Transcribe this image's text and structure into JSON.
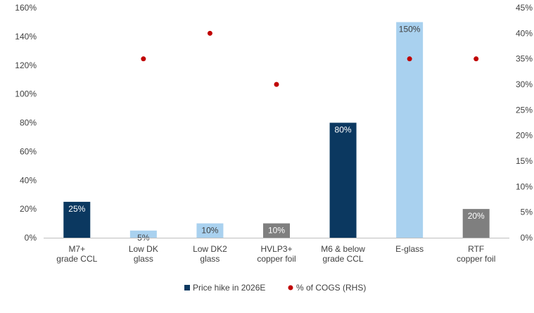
{
  "chart_data": {
    "type": "bar",
    "categories": [
      [
        "M7+",
        "grade CCL"
      ],
      [
        "Low DK",
        "glass"
      ],
      [
        "Low DK2",
        "glass"
      ],
      [
        "HVLP3+",
        "copper foil"
      ],
      [
        "M6 & below",
        "grade CCL"
      ],
      [
        "E-glass"
      ],
      [
        "RTF",
        "copper foil"
      ]
    ],
    "series": [
      {
        "name": "Price hike in 2026E",
        "kind": "bar",
        "axis": "left",
        "values": [
          25,
          5,
          10,
          10,
          80,
          150,
          20
        ],
        "labels": [
          "25%",
          "5%",
          "10%",
          "10%",
          "80%",
          "150%",
          "20%"
        ],
        "colors": [
          "#0b3860",
          "#a9d1ef",
          "#a9d1ef",
          "#7f7f7f",
          "#0b3860",
          "#a9d1ef",
          "#7f7f7f"
        ],
        "label_colors": [
          "#ffffff",
          "#404040",
          "#404040",
          "#ffffff",
          "#ffffff",
          "#404040",
          "#ffffff"
        ],
        "legend_color": "#0b3860"
      },
      {
        "name": "% of COGS (RHS)",
        "kind": "scatter",
        "axis": "right",
        "values": [
          null,
          35,
          40,
          30,
          null,
          35,
          35
        ],
        "color": "#c00000"
      }
    ],
    "left_axis": {
      "ylim": [
        0,
        160
      ],
      "ticks": [
        0,
        20,
        40,
        60,
        80,
        100,
        120,
        140,
        160
      ],
      "tick_labels": [
        "0%",
        "20%",
        "40%",
        "60%",
        "80%",
        "100%",
        "120%",
        "140%",
        "160%"
      ]
    },
    "right_axis": {
      "ylim": [
        0,
        45
      ],
      "ticks": [
        0,
        5,
        10,
        15,
        20,
        25,
        30,
        35,
        40,
        45
      ],
      "tick_labels": [
        "0%",
        "5%",
        "10%",
        "15%",
        "20%",
        "25%",
        "30%",
        "35%",
        "40%",
        "45%"
      ]
    },
    "grid": false,
    "legend_position": "bottom"
  }
}
